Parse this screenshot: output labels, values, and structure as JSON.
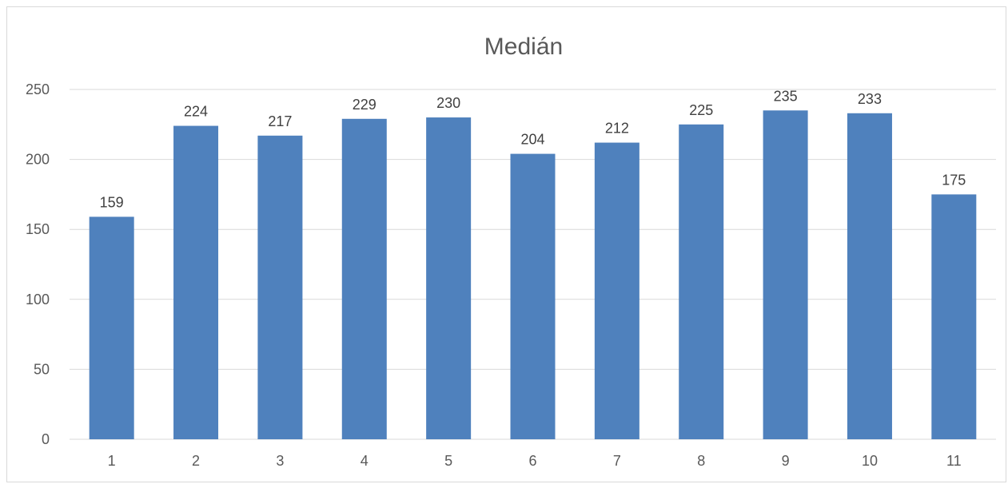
{
  "chart_data": {
    "type": "bar",
    "title": "Medián",
    "xlabel": "",
    "ylabel": "",
    "categories": [
      "1",
      "2",
      "3",
      "4",
      "5",
      "6",
      "7",
      "8",
      "9",
      "10",
      "11"
    ],
    "values": [
      159,
      224,
      217,
      229,
      230,
      204,
      212,
      225,
      235,
      233,
      175
    ],
    "ylim": [
      0,
      250
    ],
    "yticks": [
      0,
      50,
      100,
      150,
      200,
      250
    ],
    "grid": true,
    "legend": "none",
    "data_labels": true,
    "bar_color": "#4f81bd",
    "gridline_color": "#d9d9d9"
  }
}
